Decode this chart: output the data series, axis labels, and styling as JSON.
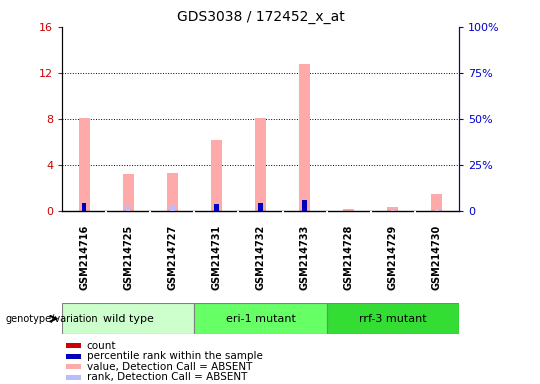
{
  "title": "GDS3038 / 172452_x_at",
  "samples": [
    "GSM214716",
    "GSM214725",
    "GSM214727",
    "GSM214731",
    "GSM214732",
    "GSM214733",
    "GSM214728",
    "GSM214729",
    "GSM214730"
  ],
  "absent_value": [
    8.1,
    3.2,
    3.3,
    6.2,
    8.1,
    12.8,
    0.15,
    0.4,
    1.5
  ],
  "absent_rank": [
    null,
    3.0,
    3.2,
    null,
    null,
    6.2,
    0.3,
    0.5,
    1.2
  ],
  "percentile_values": [
    4.3,
    null,
    null,
    4.0,
    4.3,
    6.2,
    null,
    null,
    null
  ],
  "ylim_left": [
    0,
    16
  ],
  "ylim_right": [
    0,
    100
  ],
  "yticks_left": [
    0,
    4,
    8,
    12,
    16
  ],
  "ytick_labels_left": [
    "0",
    "4",
    "8",
    "12",
    "16"
  ],
  "ytick_labels_right": [
    "0",
    "25%",
    "50%",
    "75%",
    "100%"
  ],
  "groups": [
    {
      "label": "wild type",
      "start": 0,
      "end": 3,
      "color": "#ccffcc"
    },
    {
      "label": "eri-1 mutant",
      "start": 3,
      "end": 6,
      "color": "#66ff66"
    },
    {
      "label": "rrf-3 mutant",
      "start": 6,
      "end": 9,
      "color": "#33dd33"
    }
  ],
  "color_absent_value": "#ffaaaa",
  "color_absent_rank": "#bbbbff",
  "color_percentile": "#0000bb",
  "color_count": "#cc0000",
  "left_axis_color": "#cc0000",
  "right_axis_color": "#0000cc",
  "bg_color": "#ffffff",
  "sample_bg": "#cccccc",
  "legend_items": [
    {
      "label": "count",
      "color": "#cc0000"
    },
    {
      "label": "percentile rank within the sample",
      "color": "#0000bb"
    },
    {
      "label": "value, Detection Call = ABSENT",
      "color": "#ffaaaa"
    },
    {
      "label": "rank, Detection Call = ABSENT",
      "color": "#bbbbff"
    }
  ]
}
